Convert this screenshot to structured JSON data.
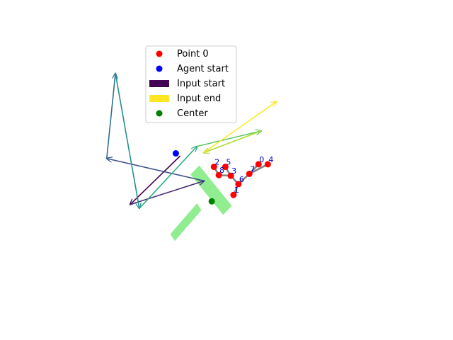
{
  "chart_data": {
    "type": "scatter",
    "title": "",
    "xlabel": "",
    "ylabel": "",
    "axes_visible": false,
    "grid": false,
    "xlim": [
      -0.7,
      0.8
    ],
    "ylim": [
      -0.5,
      0.45
    ],
    "legend": {
      "placement": "upper-center",
      "entries": [
        {
          "label": "Point 0",
          "marker": "circle",
          "color": "#ff0000"
        },
        {
          "label": "Agent start",
          "marker": "circle",
          "color": "#0000ff"
        },
        {
          "label": "Input start",
          "marker": "rect",
          "color": "#440154"
        },
        {
          "label": "Input end",
          "marker": "rect",
          "color": "#fde725"
        },
        {
          "label": "Center",
          "marker": "circle",
          "color": "#008000"
        }
      ]
    },
    "points": [
      {
        "label": "0",
        "x": 0.1628,
        "y": 0.0023
      },
      {
        "label": "1",
        "x": 0.0558,
        "y": -0.1093
      },
      {
        "label": "2",
        "x": -0.0279,
        "y": -0.007
      },
      {
        "label": "3",
        "x": 0.0442,
        "y": -0.0395
      },
      {
        "label": "4",
        "x": 0.2023,
        "y": 0.0023
      },
      {
        "label": "5",
        "x": 0.0209,
        "y": -0.007
      },
      {
        "label": "6",
        "x": 0.0767,
        "y": -0.0698
      },
      {
        "label": "7",
        "x": 0.1233,
        "y": -0.0326
      },
      {
        "label": "8",
        "x": -0.007,
        "y": -0.0372
      }
    ],
    "skeleton_color": "#808080",
    "skeleton": [
      [
        2,
        8
      ],
      [
        8,
        3
      ],
      [
        5,
        3
      ],
      [
        3,
        6
      ],
      [
        6,
        1
      ],
      [
        6,
        7
      ],
      [
        7,
        0
      ],
      [
        7,
        4
      ]
    ],
    "agent_start": {
      "x": -0.1907,
      "y": 0.0419
    },
    "center": {
      "x": -0.0372,
      "y": -0.1326
    },
    "agent_body_color": "#90ee90",
    "agent_body": {
      "bar": [
        [
          -0.0907,
          -0.0023
        ],
        [
          -0.1279,
          -0.0349
        ],
        [
          0.0116,
          -0.1814
        ],
        [
          0.0488,
          -0.1488
        ]
      ],
      "stem": [
        [
          -0.1,
          -0.1395
        ],
        [
          -0.0814,
          -0.1651
        ],
        [
          -0.1953,
          -0.2767
        ],
        [
          -0.214,
          -0.2512
        ]
      ]
    },
    "colormap": "viridis",
    "arrows": [
      {
        "from": {
          "x": -0.1721,
          "y": 0.0326
        },
        "to": {
          "x": -0.386,
          "y": -0.1442
        }
      },
      {
        "from": {
          "x": -0.386,
          "y": -0.1442
        },
        "to": {
          "x": -0.0698,
          "y": -0.0581
        }
      },
      {
        "from": {
          "x": -0.0698,
          "y": -0.0581
        },
        "to": {
          "x": -0.486,
          "y": 0.0233
        }
      },
      {
        "from": {
          "x": -0.486,
          "y": 0.0233
        },
        "to": {
          "x": -0.4488,
          "y": 0.3326
        }
      },
      {
        "from": {
          "x": -0.4488,
          "y": 0.3326
        },
        "to": {
          "x": -0.3465,
          "y": -0.1581
        }
      },
      {
        "from": {
          "x": -0.3465,
          "y": -0.1581
        },
        "to": {
          "x": -0.1,
          "y": 0.0674
        }
      },
      {
        "from": {
          "x": -0.1,
          "y": 0.0674
        },
        "to": {
          "x": 0.1744,
          "y": 0.1233
        }
      },
      {
        "from": {
          "x": 0.1744,
          "y": 0.1233
        },
        "to": {
          "x": -0.0721,
          "y": 0.0442
        }
      },
      {
        "from": {
          "x": -0.0721,
          "y": 0.0442
        },
        "to": {
          "x": 0.2395,
          "y": 0.2302
        }
      }
    ]
  }
}
